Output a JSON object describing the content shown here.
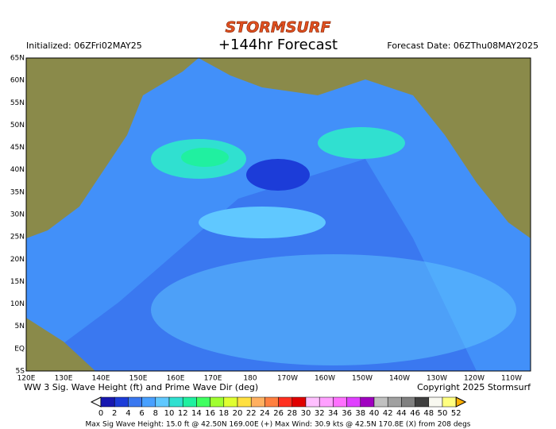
{
  "header": {
    "logo": "STORMSURF",
    "title": "+144hr Forecast",
    "initialized": "Initialized: 06ZFri02MAY25",
    "forecast_date": "Forecast Date: 06ZThu08MAY2025"
  },
  "map": {
    "lat_labels": [
      "65N",
      "60N",
      "55N",
      "50N",
      "45N",
      "40N",
      "35N",
      "30N",
      "25N",
      "20N",
      "15N",
      "10N",
      "5N",
      "EQ",
      "5S"
    ],
    "lon_labels": [
      "120E",
      "130E",
      "140E",
      "150E",
      "160E",
      "170E",
      "180",
      "170W",
      "160W",
      "150W",
      "140W",
      "130W",
      "120W",
      "110W"
    ]
  },
  "footer": {
    "caption": "WW 3 Sig. Wave Height (ft) and Prime Wave Dir (deg)",
    "copyright": "Copyright 2025 Stormsurf",
    "stats": "Max Sig Wave Height: 15.0 ft @ 42.50N 169.00E (+)   Max Wind: 30.9 kts @ 42.5N 170.8E (X) from 208 degs"
  },
  "colorbar": {
    "labels": [
      0,
      2,
      4,
      6,
      8,
      10,
      12,
      14,
      16,
      18,
      20,
      22,
      24,
      26,
      28,
      30,
      32,
      34,
      36,
      38,
      40,
      42,
      44,
      46,
      48,
      50,
      52
    ],
    "colors": [
      "#1818b0",
      "#1c3cd8",
      "#3a78f0",
      "#48a0ff",
      "#60c8ff",
      "#30e0d0",
      "#20f0a0",
      "#40ff60",
      "#a0ff30",
      "#e0ff30",
      "#ffe040",
      "#ffb060",
      "#ff8040",
      "#ff3020",
      "#e00000",
      "#ffc0ff",
      "#ffa0ff",
      "#ff70ff",
      "#e040ff",
      "#a000c0",
      "#c0c0c0",
      "#a0a0a0",
      "#808080",
      "#404040",
      "#f8f8f0",
      "#ffff80"
    ]
  }
}
